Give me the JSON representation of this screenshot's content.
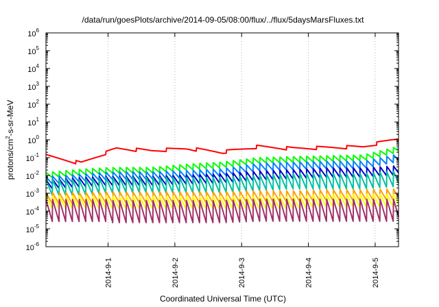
{
  "chart_data": {
    "type": "line",
    "title": "/data/run/goesPlots/archive/2014-09-05/08:00/flux/../flux/5daysMarsFluxes.txt",
    "xlabel": "Coordinated Universal Time (UTC)",
    "ylabel_parts": [
      "protons/cm",
      "2",
      "-s-sr-MeV"
    ],
    "yscale": "log",
    "ylim_exp": [
      -6,
      6
    ],
    "y_ticks": [
      {
        "base": "10",
        "exp": "6"
      },
      {
        "base": "10",
        "exp": "5"
      },
      {
        "base": "10",
        "exp": "4"
      },
      {
        "base": "10",
        "exp": "3"
      },
      {
        "base": "10",
        "exp": "2"
      },
      {
        "base": "10",
        "exp": "1"
      },
      {
        "base": "10",
        "exp": "0"
      },
      {
        "base": "10",
        "exp": "-1"
      },
      {
        "base": "10",
        "exp": "-2"
      },
      {
        "base": "10",
        "exp": "-3"
      },
      {
        "base": "10",
        "exp": "-4"
      },
      {
        "base": "10",
        "exp": "-5"
      },
      {
        "base": "10",
        "exp": "-6"
      }
    ],
    "x_ticks": [
      "2014-9-1",
      "2014-9-2",
      "2014-9-3",
      "2014-9-4",
      "2014-9-5"
    ],
    "xlim_days": [
      0.07,
      5.35
    ],
    "grid": true,
    "series": [
      {
        "color": "#ff0000",
        "base": [
          0.15,
          0.06,
          0.4,
          0.3,
          0.4,
          0.25,
          0.5,
          0.4,
          0.45,
          0.5,
          1.5
        ],
        "teeth": 0.35,
        "start_tooth": 0.5
      },
      {
        "color": "#00ff00",
        "base": [
          0.01,
          0.015,
          0.02,
          0.02,
          0.03,
          0.04,
          0.07,
          0.08,
          0.09,
          0.1,
          0.3
        ],
        "teeth": 2.2,
        "start_tooth": 0
      },
      {
        "color": "#0080ff",
        "base": [
          0.005,
          0.007,
          0.01,
          0.01,
          0.012,
          0.015,
          0.03,
          0.035,
          0.04,
          0.04,
          0.1
        ],
        "teeth": 2.8,
        "start_tooth": 0
      },
      {
        "color": "#0000c8",
        "base": [
          0.003,
          0.004,
          0.005,
          0.005,
          0.006,
          0.007,
          0.01,
          0.012,
          0.015,
          0.015,
          0.02
        ],
        "teeth": 3.5,
        "start_tooth": 0
      },
      {
        "color": "#00c0a0",
        "base": [
          0.002,
          0.002,
          0.003,
          0.003,
          0.003,
          0.003,
          0.004,
          0.005,
          0.005,
          0.005,
          0.007
        ],
        "teeth": 8,
        "start_tooth": 0
      },
      {
        "color": "#ffa000",
        "base": [
          0.0005,
          0.0005,
          0.0006,
          0.0006,
          0.0006,
          0.0006,
          0.0007,
          0.0007,
          0.0008,
          0.0008,
          0.0009
        ],
        "teeth": 4.5,
        "start_tooth": 0
      },
      {
        "color": "#ffff00",
        "base": [
          0.0003,
          0.0003,
          0.0003,
          0.0003,
          0.0003,
          0.0003,
          0.0003,
          0.0003,
          0.0004,
          0.0004,
          0.0004
        ],
        "teeth": 5.5,
        "start_tooth": 0
      },
      {
        "color": "#a0306a",
        "base": [
          0.0001,
          0.0001,
          0.0001,
          0.0001,
          0.0001,
          0.0001,
          0.00012,
          0.00012,
          0.00012,
          0.00012,
          0.00012
        ],
        "teeth": 20,
        "start_tooth": 0
      }
    ]
  }
}
